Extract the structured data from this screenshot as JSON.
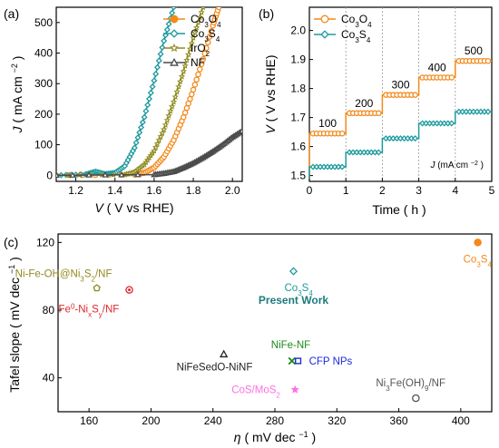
{
  "chart_data": [
    {
      "panel_label": "(a)",
      "type": "line",
      "xlabel_var": "V",
      "xlabel_unit": "( V vs RHE)",
      "ylabel_var": "J",
      "ylabel_unit": "( mA cm",
      "ylabel_sup": "−2",
      "ylabel_end": ")",
      "xlim": [
        1.1,
        2.05
      ],
      "ylim": [
        -20,
        550
      ],
      "xticks": [
        1.2,
        1.4,
        1.6,
        1.8,
        2.0
      ],
      "yticks": [
        0,
        100,
        200,
        300,
        400,
        500
      ],
      "xtick_labels": [
        "1.2",
        "1.4",
        "1.6",
        "1.8",
        "2.0"
      ],
      "ytick_labels": [
        "0",
        "100",
        "200",
        "300",
        "400",
        "500"
      ],
      "legend_position": "top-right",
      "series": [
        {
          "name": "Co3O4",
          "label_html": "Co<tspan baseline-shift='sub' font-size='8'>3</tspan>O<tspan baseline-shift='sub' font-size='8'>4</tspan>",
          "color": "#f28a1c",
          "marker": "circle",
          "x": [
            1.1,
            1.5,
            1.55,
            1.6,
            1.65,
            1.7,
            1.75,
            1.8,
            1.85,
            1.9,
            1.93
          ],
          "y": [
            0,
            2,
            8,
            25,
            60,
            115,
            190,
            280,
            380,
            490,
            550
          ]
        },
        {
          "name": "Co3S4",
          "label_html": "Co<tspan baseline-shift='sub' font-size='8'>3</tspan>S<tspan baseline-shift='sub' font-size='8'>4</tspan>",
          "color": "#1e9a9e",
          "marker": "diamond",
          "x": [
            1.1,
            1.25,
            1.3,
            1.35,
            1.4,
            1.45,
            1.5,
            1.55,
            1.6,
            1.65,
            1.7
          ],
          "y": [
            0,
            3,
            12,
            4,
            8,
            30,
            90,
            190,
            310,
            440,
            550
          ]
        },
        {
          "name": "IrO2",
          "label_html": "IrO<tspan baseline-shift='sub' font-size='8'>2</tspan>",
          "color": "#8f8a1e",
          "marker": "star",
          "x": [
            1.1,
            1.45,
            1.5,
            1.55,
            1.6,
            1.65,
            1.7,
            1.75,
            1.8,
            1.85
          ],
          "y": [
            0,
            2,
            10,
            35,
            80,
            150,
            240,
            340,
            450,
            550
          ]
        },
        {
          "name": "NF",
          "label_html": "NF",
          "color": "#4a4a4a",
          "marker": "triangle",
          "x": [
            1.1,
            1.6,
            1.65,
            1.7,
            1.75,
            1.8,
            1.85,
            1.9,
            1.95,
            2.0,
            2.05
          ],
          "y": [
            0,
            2,
            6,
            12,
            25,
            40,
            58,
            78,
            100,
            125,
            145
          ]
        }
      ]
    },
    {
      "panel_label": "(b)",
      "type": "line",
      "xlabel": "Time ( h )",
      "ylabel_var": "V",
      "ylabel_unit": "( V vs RHE)",
      "xlim": [
        0,
        5
      ],
      "ylim": [
        1.48,
        2.08
      ],
      "xticks": [
        0,
        1,
        2,
        3,
        4,
        5
      ],
      "yticks": [
        1.5,
        1.6,
        1.7,
        1.8,
        1.9,
        2.0
      ],
      "xtick_labels": [
        "0",
        "1",
        "2",
        "3",
        "4",
        "5"
      ],
      "ytick_labels": [
        "1.5",
        "1.6",
        "1.7",
        "1.8",
        "1.9",
        "2.0"
      ],
      "current_steps": [
        "100",
        "200",
        "300",
        "400",
        "500"
      ],
      "current_unit_var": "J",
      "current_unit_text": " (mA cm",
      "current_unit_sup": "−2",
      "current_unit_end": ")",
      "legend_position": "top-left",
      "series": [
        {
          "name": "Co3O4",
          "label_html": "Co<tspan baseline-shift='sub' font-size='8'>3</tspan>O<tspan baseline-shift='sub' font-size='8'>4</tspan>",
          "color": "#f28a1c",
          "marker": "circle",
          "levels": [
            1.645,
            1.715,
            1.778,
            1.838,
            1.895
          ]
        },
        {
          "name": "Co3S4",
          "label_html": "Co<tspan baseline-shift='sub' font-size='8'>3</tspan>S<tspan baseline-shift='sub' font-size='8'>4</tspan>",
          "color": "#1e9a9e",
          "marker": "diamond",
          "levels": [
            1.53,
            1.58,
            1.628,
            1.68,
            1.72
          ]
        }
      ]
    },
    {
      "panel_label": "(c)",
      "type": "scatter",
      "xlabel_var": "η",
      "xlabel_unit": " ( mV dec",
      "xlabel_sup": "−1",
      "xlabel_end": ")",
      "ylabel_main": "Tafel slope  ( mV dec",
      "ylabel_sup": "−1",
      "ylabel_end": ")",
      "xlim": [
        140,
        420
      ],
      "ylim": [
        20,
        125
      ],
      "xticks": [
        160,
        200,
        240,
        280,
        320,
        360,
        400
      ],
      "yticks": [
        40,
        80,
        120
      ],
      "xtick_labels": [
        "160",
        "200",
        "240",
        "280",
        "320",
        "360",
        "400"
      ],
      "ytick_labels": [
        "40",
        "80",
        "120"
      ],
      "points": [
        {
          "x": 165,
          "y": 93,
          "marker": "pentagon",
          "color": "#8f8a1e",
          "label_html": "Ni-Fe-OH@Ni<tspan baseline-shift='sub' font-size='8'>3</tspan>S<tspan baseline-shift='sub' font-size='8'>2</tspan>/NF",
          "label_dx": -90,
          "label_dy": -12
        },
        {
          "x": 186,
          "y": 92,
          "marker": "circle-dot",
          "color": "#e0262a",
          "label_html": "Fe<tspan baseline-shift='super' font-size='8'>0</tspan>-Ni<tspan baseline-shift='sub' font-size='8'>x</tspan>S<tspan baseline-shift='sub' font-size='8'>y</tspan>/NF",
          "label_dx": -78,
          "label_dy": 25
        },
        {
          "x": 247,
          "y": 54,
          "marker": "triangle",
          "color": "#222222",
          "label": "NiFeSedO-NiNF",
          "label_dx": -52,
          "label_dy": 18
        },
        {
          "x": 292,
          "y": 103,
          "marker": "diamond",
          "color": "#1e9a9e",
          "label_html": "Co<tspan baseline-shift='sub' font-size='8'>3</tspan>S<tspan baseline-shift='sub' font-size='8'>4</tspan>",
          "label_dx": -10,
          "label_dy": 22
        },
        {
          "x": 291,
          "y": 50,
          "marker": "cross",
          "color": "#1b8a1b",
          "label": "NiFe-NF",
          "label_dx": -23,
          "label_dy": -14
        },
        {
          "x": 295,
          "y": 50,
          "marker": "square",
          "color": "#1b2bd6",
          "label": "CFP NPs",
          "label_dx": 12,
          "label_dy": 4
        },
        {
          "x": 293,
          "y": 33,
          "marker": "star",
          "color": "#ff6fe0",
          "label_html": "CoS/MoS<tspan baseline-shift='sub' font-size='8'>2</tspan>",
          "label_dx": -70,
          "label_dy": 4
        },
        {
          "x": 371,
          "y": 28,
          "marker": "circle",
          "color": "#555555",
          "label_html": "Ni<tspan baseline-shift='sub' font-size='8'>3</tspan>Fe(OH)<tspan baseline-shift='sub' font-size='8'>9</tspan>/NF",
          "label_dx": -44,
          "label_dy": -13
        },
        {
          "x": 411,
          "y": 120,
          "marker": "circle",
          "color": "#f28a1c",
          "label_html": "Co<tspan baseline-shift='sub' font-size='8'>3</tspan>S<tspan baseline-shift='sub' font-size='8'>4</tspan>",
          "label_dx": -16,
          "label_dy": 22
        }
      ],
      "annotation": "Present Work",
      "annotation_color": "#1e7a7e"
    }
  ]
}
